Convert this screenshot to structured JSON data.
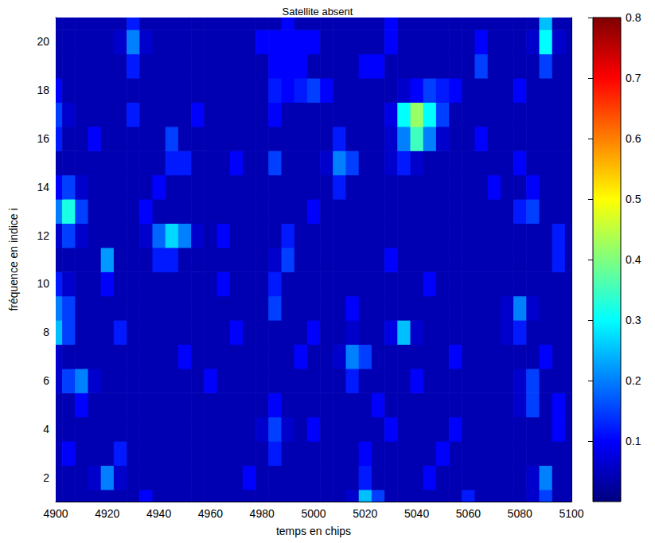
{
  "chart_data": {
    "type": "heatmap",
    "title": "Satellite absent",
    "xlabel": "temps en chips",
    "ylabel": "fréquence en indice i",
    "x": [
      4900,
      4905,
      4910,
      4915,
      4920,
      4925,
      4930,
      4935,
      4940,
      4945,
      4950,
      4955,
      4960,
      4965,
      4970,
      4975,
      4980,
      4985,
      4990,
      4995,
      5000,
      5005,
      5010,
      5015,
      5020,
      5025,
      5030,
      5035,
      5040,
      5045,
      5050,
      5055,
      5060,
      5065,
      5070,
      5075,
      5080,
      5085,
      5090,
      5095,
      5100
    ],
    "y": [
      1,
      2,
      3,
      4,
      5,
      6,
      7,
      8,
      9,
      10,
      11,
      12,
      13,
      14,
      15,
      16,
      17,
      18,
      19,
      20,
      21
    ],
    "values": [
      [
        0.04,
        0.04,
        0.04,
        0.04,
        0.04,
        0.04,
        0.04,
        0.1,
        0.04,
        0.04,
        0.04,
        0.04,
        0.04,
        0.04,
        0.04,
        0.04,
        0.04,
        0.04,
        0.04,
        0.04,
        0.04,
        0.04,
        0.04,
        0.06,
        0.25,
        0.15,
        0.04,
        0.04,
        0.04,
        0.04,
        0.04,
        0.04,
        0.12,
        0.04,
        0.04,
        0.04,
        0.04,
        0.06,
        0.15,
        0.04,
        0.04
      ],
      [
        0.04,
        0.04,
        0.04,
        0.06,
        0.2,
        0.06,
        0.04,
        0.04,
        0.04,
        0.04,
        0.04,
        0.04,
        0.04,
        0.04,
        0.04,
        0.1,
        0.04,
        0.04,
        0.04,
        0.04,
        0.04,
        0.04,
        0.04,
        0.04,
        0.12,
        0.04,
        0.04,
        0.04,
        0.04,
        0.1,
        0.04,
        0.04,
        0.04,
        0.04,
        0.04,
        0.04,
        0.04,
        0.06,
        0.2,
        0.04,
        0.04
      ],
      [
        0.04,
        0.1,
        0.04,
        0.04,
        0.04,
        0.12,
        0.04,
        0.04,
        0.04,
        0.04,
        0.04,
        0.04,
        0.04,
        0.04,
        0.04,
        0.04,
        0.04,
        0.12,
        0.04,
        0.04,
        0.04,
        0.04,
        0.04,
        0.04,
        0.1,
        0.04,
        0.04,
        0.04,
        0.04,
        0.04,
        0.1,
        0.04,
        0.04,
        0.04,
        0.04,
        0.04,
        0.04,
        0.04,
        0.04,
        0.04,
        0.04
      ],
      [
        0.04,
        0.04,
        0.04,
        0.04,
        0.04,
        0.04,
        0.04,
        0.04,
        0.04,
        0.04,
        0.04,
        0.04,
        0.04,
        0.04,
        0.04,
        0.04,
        0.06,
        0.15,
        0.06,
        0.04,
        0.1,
        0.04,
        0.04,
        0.04,
        0.04,
        0.04,
        0.1,
        0.04,
        0.04,
        0.04,
        0.04,
        0.1,
        0.04,
        0.04,
        0.04,
        0.04,
        0.04,
        0.04,
        0.04,
        0.1,
        0.04
      ],
      [
        0.04,
        0.04,
        0.1,
        0.04,
        0.04,
        0.04,
        0.04,
        0.04,
        0.04,
        0.04,
        0.04,
        0.04,
        0.04,
        0.04,
        0.04,
        0.04,
        0.04,
        0.1,
        0.04,
        0.04,
        0.04,
        0.04,
        0.04,
        0.04,
        0.04,
        0.1,
        0.04,
        0.04,
        0.04,
        0.04,
        0.04,
        0.04,
        0.04,
        0.04,
        0.04,
        0.04,
        0.06,
        0.15,
        0.04,
        0.1,
        0.04
      ],
      [
        0.06,
        0.15,
        0.2,
        0.06,
        0.04,
        0.04,
        0.04,
        0.04,
        0.04,
        0.04,
        0.04,
        0.04,
        0.1,
        0.04,
        0.04,
        0.04,
        0.04,
        0.04,
        0.04,
        0.04,
        0.04,
        0.04,
        0.04,
        0.12,
        0.04,
        0.04,
        0.04,
        0.04,
        0.1,
        0.04,
        0.04,
        0.04,
        0.04,
        0.04,
        0.04,
        0.04,
        0.06,
        0.15,
        0.04,
        0.04,
        0.04
      ],
      [
        0.06,
        0.04,
        0.04,
        0.04,
        0.04,
        0.04,
        0.04,
        0.04,
        0.04,
        0.04,
        0.1,
        0.04,
        0.04,
        0.04,
        0.04,
        0.04,
        0.04,
        0.04,
        0.04,
        0.1,
        0.04,
        0.04,
        0.06,
        0.2,
        0.15,
        0.04,
        0.04,
        0.04,
        0.04,
        0.04,
        0.04,
        0.1,
        0.04,
        0.04,
        0.04,
        0.04,
        0.04,
        0.04,
        0.1,
        0.04,
        0.04
      ],
      [
        0.25,
        0.15,
        0.04,
        0.04,
        0.04,
        0.12,
        0.04,
        0.04,
        0.04,
        0.04,
        0.04,
        0.04,
        0.04,
        0.04,
        0.1,
        0.04,
        0.04,
        0.04,
        0.04,
        0.04,
        0.1,
        0.04,
        0.04,
        0.06,
        0.04,
        0.04,
        0.08,
        0.25,
        0.06,
        0.04,
        0.04,
        0.04,
        0.04,
        0.04,
        0.04,
        0.06,
        0.12,
        0.04,
        0.04,
        0.04,
        0.04
      ],
      [
        0.2,
        0.15,
        0.04,
        0.04,
        0.04,
        0.04,
        0.04,
        0.04,
        0.04,
        0.04,
        0.04,
        0.04,
        0.04,
        0.04,
        0.04,
        0.04,
        0.04,
        0.15,
        0.04,
        0.04,
        0.04,
        0.04,
        0.04,
        0.1,
        0.04,
        0.04,
        0.04,
        0.04,
        0.04,
        0.04,
        0.04,
        0.04,
        0.04,
        0.04,
        0.04,
        0.06,
        0.2,
        0.06,
        0.04,
        0.04,
        0.04
      ],
      [
        0.12,
        0.06,
        0.04,
        0.04,
        0.1,
        0.04,
        0.04,
        0.04,
        0.04,
        0.04,
        0.04,
        0.04,
        0.04,
        0.1,
        0.04,
        0.04,
        0.04,
        0.12,
        0.04,
        0.04,
        0.04,
        0.04,
        0.04,
        0.04,
        0.04,
        0.04,
        0.04,
        0.04,
        0.04,
        0.1,
        0.04,
        0.04,
        0.04,
        0.04,
        0.04,
        0.04,
        0.04,
        0.04,
        0.04,
        0.04,
        0.04
      ],
      [
        0.04,
        0.04,
        0.04,
        0.04,
        0.22,
        0.04,
        0.04,
        0.04,
        0.12,
        0.12,
        0.04,
        0.04,
        0.04,
        0.04,
        0.04,
        0.04,
        0.04,
        0.06,
        0.15,
        0.04,
        0.04,
        0.04,
        0.04,
        0.04,
        0.04,
        0.04,
        0.1,
        0.04,
        0.04,
        0.04,
        0.04,
        0.04,
        0.04,
        0.04,
        0.04,
        0.04,
        0.04,
        0.04,
        0.04,
        0.12,
        0.04
      ],
      [
        0.06,
        0.15,
        0.06,
        0.04,
        0.04,
        0.04,
        0.04,
        0.06,
        0.18,
        0.27,
        0.2,
        0.06,
        0.04,
        0.1,
        0.04,
        0.04,
        0.04,
        0.04,
        0.12,
        0.04,
        0.04,
        0.04,
        0.04,
        0.04,
        0.04,
        0.04,
        0.04,
        0.04,
        0.04,
        0.04,
        0.04,
        0.04,
        0.04,
        0.04,
        0.04,
        0.04,
        0.04,
        0.04,
        0.04,
        0.12,
        0.04
      ],
      [
        0.2,
        0.32,
        0.15,
        0.04,
        0.04,
        0.04,
        0.04,
        0.1,
        0.04,
        0.04,
        0.04,
        0.04,
        0.04,
        0.04,
        0.04,
        0.04,
        0.04,
        0.04,
        0.04,
        0.04,
        0.1,
        0.04,
        0.04,
        0.04,
        0.04,
        0.04,
        0.04,
        0.04,
        0.04,
        0.04,
        0.04,
        0.04,
        0.04,
        0.04,
        0.04,
        0.04,
        0.12,
        0.15,
        0.04,
        0.04,
        0.04
      ],
      [
        0.1,
        0.15,
        0.06,
        0.04,
        0.04,
        0.04,
        0.04,
        0.04,
        0.1,
        0.04,
        0.04,
        0.04,
        0.04,
        0.04,
        0.04,
        0.04,
        0.04,
        0.04,
        0.04,
        0.04,
        0.04,
        0.04,
        0.12,
        0.04,
        0.04,
        0.04,
        0.04,
        0.04,
        0.04,
        0.04,
        0.04,
        0.04,
        0.04,
        0.04,
        0.1,
        0.04,
        0.04,
        0.1,
        0.04,
        0.04,
        0.04
      ],
      [
        0.04,
        0.04,
        0.04,
        0.04,
        0.04,
        0.04,
        0.04,
        0.04,
        0.04,
        0.12,
        0.12,
        0.04,
        0.04,
        0.04,
        0.1,
        0.04,
        0.04,
        0.15,
        0.04,
        0.04,
        0.04,
        0.06,
        0.2,
        0.15,
        0.04,
        0.04,
        0.06,
        0.12,
        0.06,
        0.04,
        0.04,
        0.04,
        0.04,
        0.04,
        0.04,
        0.04,
        0.1,
        0.04,
        0.04,
        0.04,
        0.04
      ],
      [
        0.12,
        0.04,
        0.04,
        0.1,
        0.04,
        0.04,
        0.04,
        0.04,
        0.04,
        0.15,
        0.04,
        0.04,
        0.04,
        0.04,
        0.04,
        0.04,
        0.04,
        0.04,
        0.04,
        0.04,
        0.04,
        0.04,
        0.12,
        0.04,
        0.04,
        0.04,
        0.06,
        0.2,
        0.35,
        0.2,
        0.06,
        0.04,
        0.04,
        0.1,
        0.04,
        0.04,
        0.04,
        0.04,
        0.04,
        0.04,
        0.04
      ],
      [
        0.15,
        0.06,
        0.04,
        0.04,
        0.04,
        0.04,
        0.12,
        0.04,
        0.04,
        0.04,
        0.04,
        0.1,
        0.04,
        0.04,
        0.04,
        0.04,
        0.04,
        0.1,
        0.04,
        0.04,
        0.04,
        0.04,
        0.04,
        0.04,
        0.04,
        0.04,
        0.08,
        0.3,
        0.42,
        0.3,
        0.15,
        0.04,
        0.04,
        0.04,
        0.04,
        0.04,
        0.04,
        0.04,
        0.04,
        0.04,
        0.04
      ],
      [
        0.1,
        0.04,
        0.04,
        0.04,
        0.04,
        0.04,
        0.04,
        0.04,
        0.04,
        0.04,
        0.04,
        0.04,
        0.04,
        0.04,
        0.04,
        0.04,
        0.04,
        0.12,
        0.1,
        0.12,
        0.15,
        0.1,
        0.04,
        0.04,
        0.04,
        0.04,
        0.04,
        0.06,
        0.1,
        0.15,
        0.12,
        0.1,
        0.04,
        0.04,
        0.04,
        0.04,
        0.1,
        0.04,
        0.04,
        0.04,
        0.04
      ],
      [
        0.04,
        0.04,
        0.04,
        0.04,
        0.04,
        0.04,
        0.12,
        0.04,
        0.04,
        0.04,
        0.04,
        0.04,
        0.04,
        0.04,
        0.04,
        0.04,
        0.04,
        0.1,
        0.1,
        0.1,
        0.04,
        0.04,
        0.04,
        0.04,
        0.1,
        0.1,
        0.04,
        0.04,
        0.04,
        0.04,
        0.04,
        0.04,
        0.04,
        0.15,
        0.04,
        0.04,
        0.04,
        0.04,
        0.15,
        0.04,
        0.04
      ],
      [
        0.04,
        0.04,
        0.04,
        0.04,
        0.04,
        0.06,
        0.2,
        0.06,
        0.04,
        0.04,
        0.04,
        0.04,
        0.04,
        0.04,
        0.04,
        0.04,
        0.1,
        0.1,
        0.1,
        0.1,
        0.1,
        0.04,
        0.04,
        0.04,
        0.04,
        0.04,
        0.1,
        0.04,
        0.04,
        0.04,
        0.04,
        0.04,
        0.04,
        0.1,
        0.04,
        0.04,
        0.04,
        0.06,
        0.3,
        0.06,
        0.04
      ],
      [
        0.04,
        0.04,
        0.04,
        0.04,
        0.04,
        0.04,
        0.12,
        0.04,
        0.04,
        0.04,
        0.04,
        0.04,
        0.04,
        0.04,
        0.04,
        0.04,
        0.04,
        0.04,
        0.1,
        0.04,
        0.04,
        0.04,
        0.04,
        0.04,
        0.04,
        0.04,
        0.1,
        0.04,
        0.04,
        0.04,
        0.04,
        0.04,
        0.04,
        0.04,
        0.04,
        0.04,
        0.04,
        0.04,
        0.25,
        0.04,
        0.04
      ]
    ],
    "xlim": [
      4900,
      5100
    ],
    "ylim": [
      1,
      21
    ],
    "xticks": [
      4900,
      4920,
      4940,
      4960,
      4980,
      5000,
      5020,
      5040,
      5060,
      5080,
      5100
    ],
    "yticks": [
      2,
      4,
      6,
      8,
      10,
      12,
      14,
      16,
      18,
      20
    ],
    "colorbar_lim": [
      0,
      0.8
    ],
    "colorbar_ticks": [
      0.1,
      0.2,
      0.3,
      0.4,
      0.5,
      0.6,
      0.7,
      0.8
    ],
    "grid": false
  }
}
